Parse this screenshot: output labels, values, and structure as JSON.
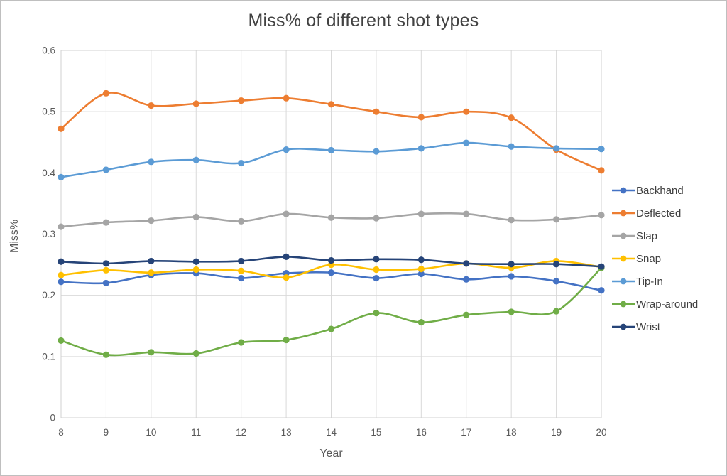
{
  "chart_data": {
    "type": "line",
    "title": "Miss% of different shot types",
    "xlabel": "Year",
    "ylabel": "Miss%",
    "categories": [
      8,
      9,
      10,
      11,
      12,
      13,
      14,
      15,
      16,
      17,
      18,
      19,
      20
    ],
    "ylim": [
      0,
      0.6
    ],
    "ytick_step": 0.1,
    "ytick_labels": [
      "0",
      "0.1",
      "0.2",
      "0.3",
      "0.4",
      "0.5",
      "0.6"
    ],
    "grid": true,
    "legend_position": "right",
    "line_style": "smooth-with-markers",
    "colors": {
      "grid": "#d9d9d9",
      "plot_border": "#d0d0d0",
      "tick_text": "#595959",
      "title_text": "#424242"
    },
    "series": [
      {
        "name": "Backhand",
        "color": "#4472C4",
        "values": [
          0.222,
          0.22,
          0.233,
          0.236,
          0.228,
          0.236,
          0.237,
          0.228,
          0.235,
          0.226,
          0.231,
          0.223,
          0.208
        ]
      },
      {
        "name": "Deflected",
        "color": "#ED7D31",
        "values": [
          0.472,
          0.53,
          0.51,
          0.513,
          0.518,
          0.522,
          0.512,
          0.5,
          0.491,
          0.5,
          0.49,
          0.438,
          0.404
        ]
      },
      {
        "name": "Slap",
        "color": "#A5A5A5",
        "values": [
          0.312,
          0.319,
          0.322,
          0.328,
          0.321,
          0.333,
          0.327,
          0.326,
          0.333,
          0.333,
          0.323,
          0.324,
          0.331
        ]
      },
      {
        "name": "Snap",
        "color": "#FFC000",
        "values": [
          0.233,
          0.241,
          0.237,
          0.242,
          0.24,
          0.229,
          0.25,
          0.242,
          0.243,
          0.252,
          0.245,
          0.256,
          0.246
        ]
      },
      {
        "name": "Tip-In",
        "color": "#5B9BD5",
        "values": [
          0.393,
          0.405,
          0.418,
          0.421,
          0.416,
          0.438,
          0.437,
          0.435,
          0.44,
          0.449,
          0.443,
          0.44,
          0.439
        ]
      },
      {
        "name": "Wrap-around",
        "color": "#70AD47",
        "values": [
          0.126,
          0.103,
          0.107,
          0.105,
          0.123,
          0.127,
          0.145,
          0.171,
          0.156,
          0.168,
          0.173,
          0.174,
          0.245
        ]
      },
      {
        "name": "Wrist",
        "color": "#264478",
        "values": [
          0.255,
          0.252,
          0.256,
          0.255,
          0.256,
          0.263,
          0.257,
          0.259,
          0.258,
          0.252,
          0.251,
          0.251,
          0.247
        ]
      }
    ]
  }
}
